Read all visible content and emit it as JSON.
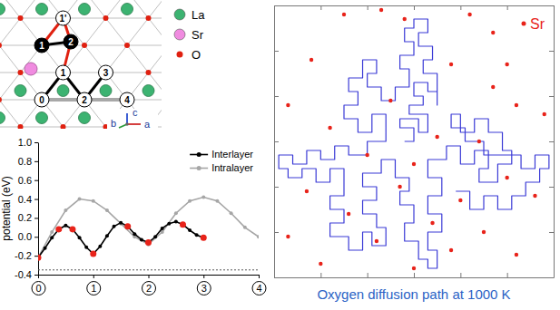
{
  "chart_data": [
    {
      "type": "line",
      "ylabel": "potential (eV)",
      "xlim": [
        0,
        4
      ],
      "ylim": [
        -0.4,
        1.0
      ],
      "xticks": [
        0,
        1,
        2,
        3,
        4
      ],
      "yticks": [
        -0.4,
        -0.2,
        {
          "value": 0,
          "label": "0.0"
        },
        0.2,
        0.4,
        0.6,
        0.8,
        {
          "value": 1,
          "label": "1.0"
        }
      ],
      "legend": "upper right",
      "hline": -0.35,
      "series": [
        {
          "name": "Interlayer",
          "color": "#000000",
          "marker": "circle",
          "x": [
            0,
            0.125,
            0.25,
            0.375,
            0.5,
            0.625,
            0.75,
            0.875,
            1,
            1.125,
            1.25,
            1.375,
            1.5,
            1.625,
            1.75,
            1.875,
            2,
            2.125,
            2.25,
            2.375,
            2.5,
            2.625,
            2.75,
            2.875,
            3
          ],
          "values": [
            -0.22,
            -0.12,
            -0.01,
            0.08,
            0.12,
            0.08,
            -0.01,
            -0.11,
            -0.18,
            -0.1,
            0.01,
            0.11,
            0.15,
            0.11,
            0.03,
            -0.03,
            -0.06,
            0,
            0.09,
            0.14,
            0.16,
            0.13,
            0.07,
            0.02,
            -0.01
          ]
        },
        {
          "name": "Intralayer",
          "color": "#a6a6a6",
          "marker": "circle",
          "x": [
            0,
            0.25,
            0.5,
            0.75,
            1,
            1.25,
            1.5,
            1.75,
            2,
            2.25,
            2.5,
            2.75,
            3,
            3.25,
            3.5,
            3.75,
            4
          ],
          "values": [
            -0.22,
            0.05,
            0.28,
            0.4,
            0.38,
            0.28,
            0.14,
            0,
            -0.08,
            0.05,
            0.25,
            0.38,
            0.42,
            0.38,
            0.25,
            0.1,
            0
          ]
        }
      ],
      "key_points": {
        "color": "#e8231a",
        "x": [
          0,
          0.375,
          0.625,
          1,
          1.625,
          2,
          2.625,
          3
        ],
        "values": [
          -0.22,
          0.08,
          0.08,
          -0.18,
          0.11,
          -0.06,
          0.13,
          -0.01
        ]
      }
    },
    {
      "type": "path",
      "title": "Oxygen diffusion path at 1000 K",
      "xlim": [
        0,
        60
      ],
      "ylim": [
        0,
        60
      ],
      "xticks": [
        0,
        10,
        20,
        30,
        40,
        50,
        60
      ],
      "yticks": [
        0,
        10,
        20,
        30,
        40,
        50,
        60
      ],
      "tick_labels": false,
      "legend": "upper right",
      "series": [
        {
          "type": "line",
          "color": "#3a3ad6",
          "x": [
            28,
            30,
            30,
            27,
            27,
            31,
            31,
            33,
            33,
            29,
            29,
            32,
            32,
            30,
            30,
            33,
            33,
            35,
            35,
            35,
            32,
            32,
            34,
            34,
            31,
            31,
            33,
            33,
            30,
            30,
            28,
            28,
            30,
            30,
            27,
            27,
            29,
            29,
            26,
            26,
            23,
            23,
            20,
            20,
            22,
            22,
            19,
            19,
            16,
            16,
            18,
            18,
            15,
            15,
            18,
            18,
            21,
            21,
            24,
            24,
            24,
            20,
            20,
            16,
            16,
            13,
            13,
            10,
            10,
            7,
            7,
            4,
            4,
            1,
            1,
            3,
            3,
            6,
            6,
            9,
            9,
            12,
            12,
            15,
            15,
            15,
            12,
            12,
            15,
            15,
            12,
            12,
            16,
            16,
            19,
            19,
            21,
            21,
            24,
            24,
            22,
            22,
            19,
            19,
            22,
            22,
            19,
            19,
            23,
            23,
            26,
            26,
            29,
            29,
            27,
            27,
            30,
            30,
            28,
            28,
            31,
            31,
            33,
            33,
            35,
            35,
            33,
            33,
            36,
            36,
            33,
            33,
            36,
            36,
            33,
            33,
            37,
            37,
            40,
            40,
            43,
            43,
            46,
            46,
            44,
            44,
            48,
            48,
            51,
            51,
            49,
            49,
            46,
            46,
            43,
            43,
            40,
            40,
            38,
            38,
            41,
            41,
            45,
            45,
            53,
            53,
            56,
            56,
            59,
            59,
            57,
            57,
            54,
            54,
            51,
            51,
            48,
            48,
            45,
            45,
            42,
            42,
            39
          ],
          "values": [
            30,
            30,
            33,
            33,
            35,
            35,
            32,
            32,
            36,
            36,
            38,
            38,
            40,
            40,
            43,
            43,
            41,
            41,
            38,
            45,
            45,
            48,
            48,
            51,
            51,
            54,
            54,
            57,
            57,
            55,
            55,
            52,
            52,
            49,
            49,
            46,
            46,
            42,
            42,
            39,
            39,
            42,
            42,
            45,
            45,
            48,
            48,
            44,
            44,
            41,
            41,
            38,
            38,
            35,
            35,
            32,
            32,
            36,
            36,
            33,
            30,
            30,
            27,
            27,
            29,
            29,
            26,
            26,
            28,
            28,
            25,
            25,
            27,
            27,
            24,
            24,
            22,
            22,
            24,
            24,
            21,
            21,
            24,
            24,
            21,
            18,
            18,
            15,
            15,
            12,
            12,
            9,
            9,
            6,
            6,
            10,
            10,
            7,
            7,
            11,
            11,
            14,
            14,
            17,
            17,
            20,
            20,
            23,
            23,
            26,
            26,
            22,
            22,
            19,
            19,
            16,
            16,
            12,
            12,
            8,
            8,
            4,
            4,
            2,
            2,
            6,
            6,
            10,
            10,
            14,
            14,
            18,
            18,
            22,
            22,
            26,
            26,
            29,
            29,
            25,
            25,
            28,
            28,
            24,
            24,
            21,
            21,
            25,
            25,
            28,
            28,
            32,
            32,
            35,
            35,
            32,
            32,
            36,
            36,
            33,
            33,
            30,
            30,
            27,
            27,
            24,
            24,
            27,
            27,
            24,
            24,
            21,
            21,
            18,
            18,
            15,
            15,
            18,
            18,
            15,
            15,
            19,
            19
          ]
        },
        {
          "name": "Sr",
          "type": "scatter",
          "color": "#e8231a",
          "marker": "circle",
          "x": [
            15,
            23,
            28,
            42,
            47,
            8,
            38,
            50,
            47,
            3,
            25,
            52,
            58,
            12,
            35,
            44,
            20,
            30,
            50,
            7,
            27,
            40,
            56,
            16,
            34,
            45,
            3,
            22,
            38,
            52,
            30,
            10
          ],
          "values": [
            58,
            59,
            57,
            58,
            54,
            48,
            47,
            47,
            42,
            38,
            39,
            38,
            36,
            33,
            31,
            30,
            27,
            25,
            22,
            19,
            20,
            17,
            18,
            14,
            12,
            10,
            9,
            8,
            6,
            5,
            2,
            3
          ]
        }
      ]
    }
  ],
  "structure": {
    "legend": [
      {
        "label": "La",
        "color": "#3cb371"
      },
      {
        "label": "Sr",
        "color": "#f08be0"
      },
      {
        "label": "O",
        "color": "#e02010"
      }
    ],
    "sites": [
      {
        "label": "1'",
        "filled": false
      },
      {
        "label": "1",
        "filled": true
      },
      {
        "label": "2",
        "filled": true
      },
      {
        "label": "1",
        "filled": false
      },
      {
        "label": "3",
        "filled": false
      },
      {
        "label": "0",
        "filled": false
      },
      {
        "label": "2",
        "filled": false
      },
      {
        "label": "4",
        "filled": false
      }
    ],
    "axes": [
      {
        "label": "b",
        "color": "#2a9a3a"
      },
      {
        "label": "c",
        "color": "#2a4fd0"
      },
      {
        "label": "a",
        "color": "#d02a2a"
      }
    ]
  }
}
